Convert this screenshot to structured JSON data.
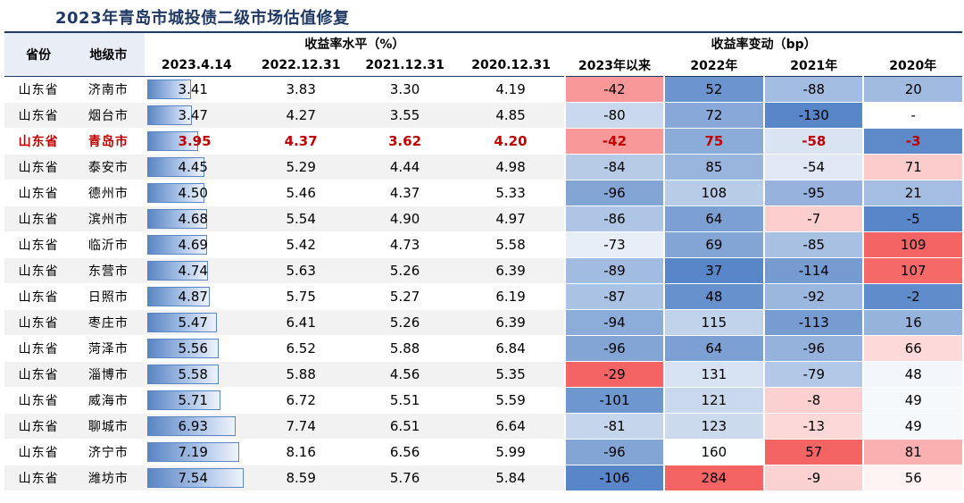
{
  "title": "2023年青岛市城投债二级市场估值修复",
  "headers": {
    "province": "省份",
    "city": "地级市",
    "yield_group": "收益率水平（%）",
    "change_group": "收益率变动（bp）",
    "yield_cols": [
      "2023.4.14",
      "2022.12.31",
      "2021.12.31",
      "2020.12.31"
    ],
    "change_cols": [
      "2023年以来",
      "2022年",
      "2021年",
      "2020年"
    ]
  },
  "highlight_color": "#c00000",
  "bar_max": 7.54,
  "rows": [
    {
      "prov": "山东省",
      "city": "济南市",
      "y": [
        "3.41",
        "3.83",
        "3.30",
        "4.19"
      ],
      "c": [
        "-42",
        "52",
        "-88",
        "20"
      ]
    },
    {
      "prov": "山东省",
      "city": "烟台市",
      "y": [
        "3.47",
        "4.27",
        "3.55",
        "4.85"
      ],
      "c": [
        "-80",
        "72",
        "-130",
        "-"
      ]
    },
    {
      "prov": "山东省",
      "city": "青岛市",
      "y": [
        "3.95",
        "4.37",
        "3.62",
        "4.20"
      ],
      "c": [
        "-42",
        "75",
        "-58",
        "-3"
      ],
      "highlight": true
    },
    {
      "prov": "山东省",
      "city": "泰安市",
      "y": [
        "4.45",
        "5.29",
        "4.44",
        "4.98"
      ],
      "c": [
        "-84",
        "85",
        "-54",
        "71"
      ]
    },
    {
      "prov": "山东省",
      "city": "德州市",
      "y": [
        "4.50",
        "5.46",
        "4.37",
        "5.33"
      ],
      "c": [
        "-96",
        "108",
        "-95",
        "21"
      ]
    },
    {
      "prov": "山东省",
      "city": "滨州市",
      "y": [
        "4.68",
        "5.54",
        "4.90",
        "4.97"
      ],
      "c": [
        "-86",
        "64",
        "-7",
        "-5"
      ]
    },
    {
      "prov": "山东省",
      "city": "临沂市",
      "y": [
        "4.69",
        "5.42",
        "4.73",
        "5.58"
      ],
      "c": [
        "-73",
        "69",
        "-85",
        "109"
      ]
    },
    {
      "prov": "山东省",
      "city": "东营市",
      "y": [
        "4.74",
        "5.63",
        "5.26",
        "6.39"
      ],
      "c": [
        "-89",
        "37",
        "-114",
        "107"
      ]
    },
    {
      "prov": "山东省",
      "city": "日照市",
      "y": [
        "4.87",
        "5.75",
        "5.27",
        "6.19"
      ],
      "c": [
        "-87",
        "48",
        "-92",
        "-2"
      ]
    },
    {
      "prov": "山东省",
      "city": "枣庄市",
      "y": [
        "5.47",
        "6.41",
        "5.26",
        "6.39"
      ],
      "c": [
        "-94",
        "115",
        "-113",
        "16"
      ]
    },
    {
      "prov": "山东省",
      "city": "菏泽市",
      "y": [
        "5.56",
        "6.52",
        "5.88",
        "6.84"
      ],
      "c": [
        "-96",
        "64",
        "-96",
        "66"
      ]
    },
    {
      "prov": "山东省",
      "city": "淄博市",
      "y": [
        "5.58",
        "5.88",
        "4.56",
        "5.35"
      ],
      "c": [
        "-29",
        "131",
        "-79",
        "48"
      ]
    },
    {
      "prov": "山东省",
      "city": "威海市",
      "y": [
        "5.71",
        "6.72",
        "5.51",
        "5.59"
      ],
      "c": [
        "-101",
        "121",
        "-8",
        "49"
      ]
    },
    {
      "prov": "山东省",
      "city": "聊城市",
      "y": [
        "6.93",
        "7.74",
        "6.51",
        "6.64"
      ],
      "c": [
        "-81",
        "123",
        "-13",
        "49"
      ]
    },
    {
      "prov": "山东省",
      "city": "济宁市",
      "y": [
        "7.19",
        "8.16",
        "6.56",
        "5.99"
      ],
      "c": [
        "-96",
        "160",
        "57",
        "81"
      ]
    },
    {
      "prov": "山东省",
      "city": "潍坊市",
      "y": [
        "7.54",
        "8.59",
        "5.76",
        "5.84"
      ],
      "c": [
        "-106",
        "284",
        "-9",
        "56"
      ]
    }
  ]
}
